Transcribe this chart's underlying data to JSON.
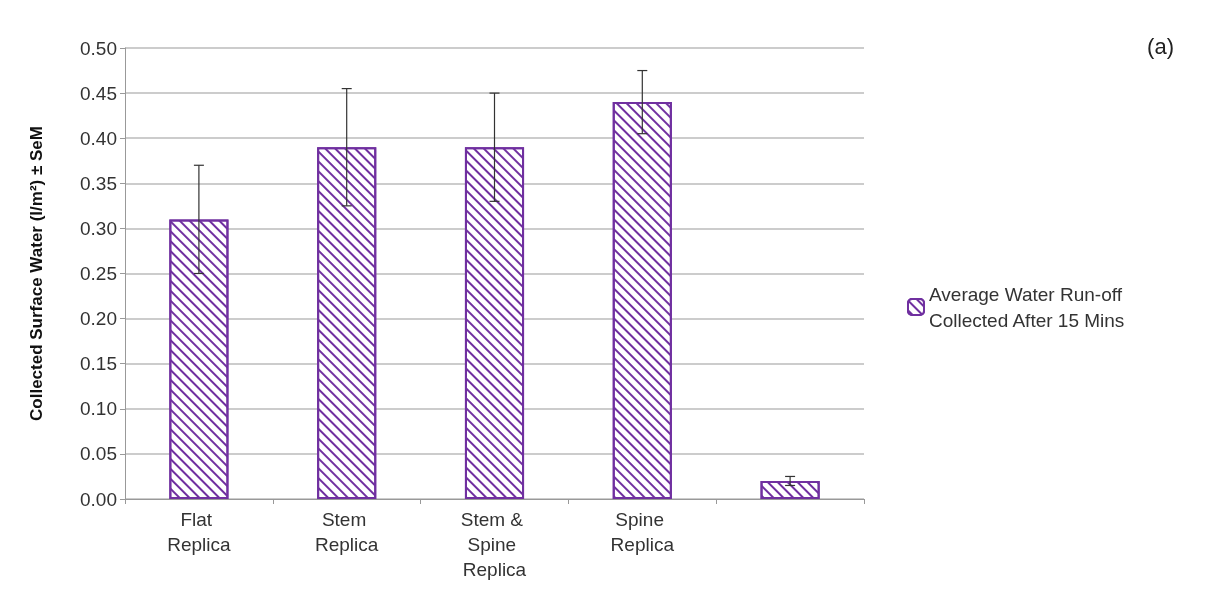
{
  "chart_data": {
    "type": "bar",
    "ylabel": "Collected Surface Water (l/m²) ± SeM",
    "categories": [
      "Flat Replica",
      "Stem Replica",
      "Stem & Spine Replica",
      "Spine Replica",
      null
    ],
    "series": [
      {
        "name": "Average Water Run-off Collected After 15 Mins",
        "color": "#7030a0",
        "values": [
          0.31,
          0.39,
          0.39,
          0.44,
          0.02
        ],
        "errors": [
          0.06,
          0.065,
          0.06,
          0.035,
          0.005
        ]
      }
    ],
    "ylim": [
      0,
      0.5
    ],
    "yticks": [
      {
        "value": 0,
        "label": "0.00"
      },
      0.05,
      {
        "value": 0.1,
        "label": "0.10"
      },
      0.15,
      {
        "value": 0.2,
        "label": "0.20"
      },
      0.25,
      {
        "value": 0.3,
        "label": "0.30"
      },
      0.35,
      {
        "value": 0.4,
        "label": "0.40"
      },
      0.45,
      {
        "value": 0.5,
        "label": "0.50"
      }
    ],
    "grid": "y",
    "legend": "right",
    "annotations": [
      "(a)"
    ]
  }
}
